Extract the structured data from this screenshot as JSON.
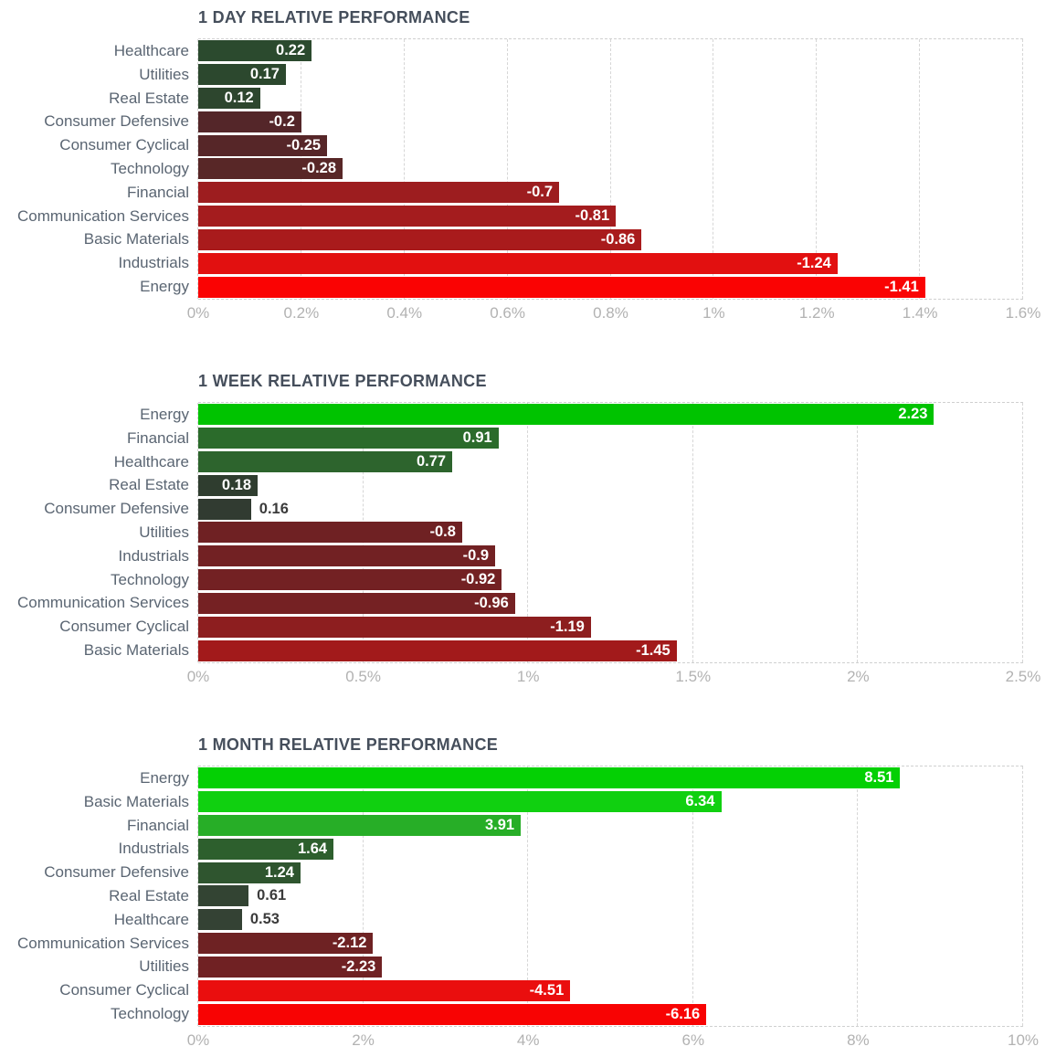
{
  "palette": {
    "title_color": "#454e5b",
    "category_label_color": "#5a6572",
    "tick_label_color": "#b2b2b2",
    "value_inside_color": "#ffffff",
    "value_outside_color": "#3b3b3b",
    "gridline_color": "#d6d6d6",
    "background": "#ffffff"
  },
  "chart_data": [
    {
      "type": "bar",
      "orientation": "horizontal",
      "title": "1 DAY RELATIVE PERFORMANCE",
      "note": "bar length encodes absolute value of performance; color encodes sign and magnitude",
      "categories": [
        "Healthcare",
        "Utilities",
        "Real Estate",
        "Consumer Defensive",
        "Consumer Cyclical",
        "Technology",
        "Financial",
        "Communication Services",
        "Basic Materials",
        "Industrials",
        "Energy"
      ],
      "values": [
        0.22,
        0.17,
        0.12,
        -0.2,
        -0.25,
        -0.28,
        -0.7,
        -0.81,
        -0.86,
        -1.24,
        -1.41
      ],
      "value_labels": [
        "0.22",
        "0.17",
        "0.12",
        "-0.2",
        "-0.25",
        "-0.28",
        "-0.7",
        "-0.81",
        "-0.86",
        "-1.24",
        "-1.41"
      ],
      "bar_colors": [
        "#2b4a2e",
        "#2c482e",
        "#2d462e",
        "#542629",
        "#562628",
        "#582727",
        "#9d1d1f",
        "#a41c1e",
        "#a91b1c",
        "#e21010",
        "#fa0303"
      ],
      "outside_value_indices": [],
      "xlim": [
        0,
        1.6
      ],
      "tick_values": [
        0,
        0.2,
        0.4,
        0.6,
        0.8,
        1,
        1.2,
        1.4,
        1.6
      ],
      "tick_labels": [
        "0%",
        "0.2%",
        "0.4%",
        "0.6%",
        "0.8%",
        "1%",
        "1.2%",
        "1.4%",
        "1.6%"
      ],
      "grid": true,
      "legend": false
    },
    {
      "type": "bar",
      "orientation": "horizontal",
      "title": "1 WEEK RELATIVE PERFORMANCE",
      "note": "bar length encodes absolute value of performance; color encodes sign and magnitude",
      "categories": [
        "Energy",
        "Financial",
        "Healthcare",
        "Real Estate",
        "Consumer Defensive",
        "Utilities",
        "Industrials",
        "Technology",
        "Communication Services",
        "Consumer Cyclical",
        "Basic Materials"
      ],
      "values": [
        2.23,
        0.91,
        0.77,
        0.18,
        0.16,
        -0.8,
        -0.9,
        -0.92,
        -0.96,
        -1.19,
        -1.45
      ],
      "value_labels": [
        "2.23",
        "0.91",
        "0.77",
        "0.18",
        "0.16",
        "-0.8",
        "-0.9",
        "-0.92",
        "-0.96",
        "-1.19",
        "-1.45"
      ],
      "bar_colors": [
        "#00c300",
        "#2b6b2b",
        "#2d642d",
        "#2f3d2f",
        "#313b31",
        "#6f2123",
        "#722123",
        "#732123",
        "#752123",
        "#8d1e1f",
        "#a21a1b"
      ],
      "outside_value_indices": [
        4
      ],
      "xlim": [
        0,
        2.5
      ],
      "tick_values": [
        0,
        0.5,
        1,
        1.5,
        2,
        2.5
      ],
      "tick_labels": [
        "0%",
        "0.5%",
        "1%",
        "1.5%",
        "2%",
        "2.5%"
      ],
      "grid": true,
      "legend": false
    },
    {
      "type": "bar",
      "orientation": "horizontal",
      "title": "1 MONTH RELATIVE PERFORMANCE",
      "note": "bar length encodes absolute value of performance; color encodes sign and magnitude",
      "categories": [
        "Energy",
        "Basic Materials",
        "Financial",
        "Industrials",
        "Consumer Defensive",
        "Real Estate",
        "Healthcare",
        "Communication Services",
        "Utilities",
        "Consumer Cyclical",
        "Technology"
      ],
      "values": [
        8.51,
        6.34,
        3.91,
        1.64,
        1.24,
        0.61,
        0.53,
        -2.12,
        -2.23,
        -4.51,
        -6.16
      ],
      "value_labels": [
        "8.51",
        "6.34",
        "3.91",
        "1.64",
        "1.24",
        "0.61",
        "0.53",
        "-2.12",
        "-2.23",
        "-4.51",
        "-6.16"
      ],
      "bar_colors": [
        "#04d004",
        "#10d010",
        "#27ae27",
        "#2d5f2d",
        "#2f552f",
        "#334433",
        "#344234",
        "#6e2223",
        "#702123",
        "#ea0e0e",
        "#f80303"
      ],
      "outside_value_indices": [
        5,
        6
      ],
      "xlim": [
        0,
        10
      ],
      "tick_values": [
        0,
        2,
        4,
        6,
        8,
        10
      ],
      "tick_labels": [
        "0%",
        "2%",
        "4%",
        "6%",
        "8%",
        "10%"
      ],
      "grid": true,
      "legend": false
    }
  ]
}
